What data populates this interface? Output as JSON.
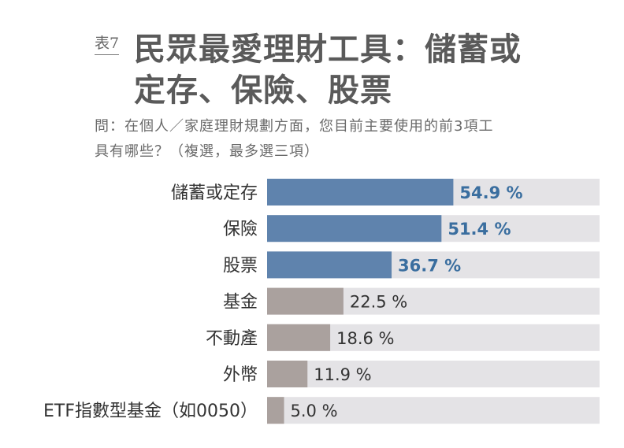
{
  "chart_data": {
    "type": "bar",
    "orientation": "horizontal",
    "tag": "表7",
    "title_lines": [
      "民眾最愛理財工具：儲蓄或",
      "定存、保險、股票"
    ],
    "subtitle_lines": [
      "問：在個人／家庭理財規劃方面，您目前主要使用的前3項工",
      "具有哪些？（複選，最多選三項）"
    ],
    "categories": [
      "儲蓄或定存",
      "保險",
      "股票",
      "基金",
      "不動產",
      "外幣",
      "ETF指數型基金（如0050）"
    ],
    "values": [
      54.9,
      51.4,
      36.7,
      22.5,
      18.6,
      11.9,
      5.0
    ],
    "value_labels": [
      "54.9 %",
      "51.4 %",
      "36.7 %",
      "22.5 %",
      "18.6 %",
      "11.9 %",
      "5.0 %"
    ],
    "highlighted": [
      true,
      true,
      true,
      false,
      false,
      false,
      false
    ],
    "xlim": [
      0,
      98
    ],
    "unit": "%",
    "grid": false,
    "colors": {
      "highlight_bar": "#5f83ad",
      "highlight_text": "#3a6e9f",
      "normal_bar": "#aaa19e",
      "normal_text": "#333333",
      "track": "#e4e3e6"
    }
  }
}
